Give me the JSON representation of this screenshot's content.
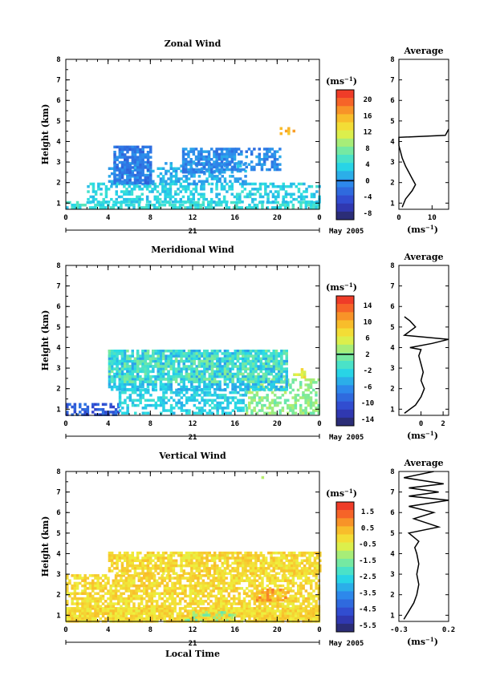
{
  "chart_data": [
    {
      "type": "heatmap",
      "title": "Zonal Wind",
      "xlabel": "",
      "ylabel": "Height (km)",
      "x_ticks": [
        "0",
        "4",
        "8",
        "12",
        "16",
        "20",
        "0"
      ],
      "y_ticks": [
        "1",
        "2",
        "3",
        "4",
        "5",
        "6",
        "7",
        "8"
      ],
      "xlim_hours": [
        0,
        24
      ],
      "ylim_km": [
        0.7,
        8
      ],
      "date_day": "21",
      "date_month": "May 2005",
      "colorbar": {
        "unit": "(ms⁻¹)",
        "ticks": [
          "20",
          "16",
          "12",
          "8",
          "4",
          "0",
          "-4",
          "-8"
        ],
        "range": [
          -10,
          22
        ]
      },
      "data_regions": [
        {
          "t0": 0,
          "t1": 24,
          "h0": 0.8,
          "h1": 1.1,
          "value": 4,
          "coverage": 0.55
        },
        {
          "t0": 2,
          "t1": 24,
          "h0": 1.1,
          "h1": 2.0,
          "value": 3,
          "coverage": 0.5
        },
        {
          "t0": 4,
          "t1": 17,
          "h0": 2.0,
          "h1": 3.0,
          "value": 1,
          "coverage": 0.45
        },
        {
          "t0": 4.5,
          "t1": 8,
          "h0": 2.0,
          "h1": 3.8,
          "value": -2,
          "coverage": 0.8
        },
        {
          "t0": 11,
          "t1": 16,
          "h0": 2.5,
          "h1": 3.7,
          "value": -1,
          "coverage": 0.8
        },
        {
          "t0": 16,
          "t1": 20.5,
          "h0": 2.6,
          "h1": 3.7,
          "value": -1,
          "coverage": 0.5
        },
        {
          "t0": 20,
          "t1": 21.5,
          "h0": 4.4,
          "h1": 4.7,
          "value": 16,
          "coverage": 0.4
        }
      ],
      "average": {
        "title": "Average",
        "xlabel": "(ms⁻¹)",
        "x_ticks": [
          "0",
          "10"
        ],
        "xlim": [
          0,
          15
        ],
        "y_ticks": [
          "1",
          "2",
          "3",
          "4",
          "5",
          "6",
          "7",
          "8"
        ],
        "x": [
          1,
          2,
          4,
          5,
          4,
          3,
          2,
          1,
          0.5,
          0,
          0,
          14,
          15
        ],
        "y": [
          0.8,
          1.2,
          1.6,
          1.9,
          2.2,
          2.5,
          2.8,
          3.2,
          3.5,
          3.8,
          4.2,
          4.3,
          4.6
        ]
      }
    },
    {
      "type": "heatmap",
      "title": "Meridional Wind",
      "xlabel": "",
      "ylabel": "Height (km)",
      "x_ticks": [
        "0",
        "4",
        "8",
        "12",
        "16",
        "20",
        "0"
      ],
      "y_ticks": [
        "1",
        "2",
        "3",
        "4",
        "5",
        "6",
        "7",
        "8"
      ],
      "xlim_hours": [
        0,
        24
      ],
      "ylim_km": [
        0.7,
        8
      ],
      "date_day": "21",
      "date_month": "May 2005",
      "colorbar": {
        "unit": "(ms⁻¹)",
        "ticks": [
          "14",
          "10",
          "6",
          "2",
          "-2",
          "-6",
          "-10",
          "-14"
        ],
        "range": [
          -16,
          16
        ]
      },
      "data_regions": [
        {
          "t0": 0,
          "t1": 5,
          "h0": 0.8,
          "h1": 1.3,
          "value": -10,
          "coverage": 0.55
        },
        {
          "t0": 5,
          "t1": 17,
          "h0": 0.8,
          "h1": 2.0,
          "value": -3,
          "coverage": 0.55
        },
        {
          "t0": 17,
          "t1": 24,
          "h0": 0.8,
          "h1": 2.5,
          "value": 2,
          "coverage": 0.5
        },
        {
          "t0": 4,
          "t1": 21,
          "h0": 2.0,
          "h1": 3.9,
          "value": -4,
          "coverage": 0.7
        },
        {
          "t0": 4,
          "t1": 21,
          "h0": 2.4,
          "h1": 3.9,
          "value": 0,
          "coverage": 0.5
        },
        {
          "t0": 21.5,
          "t1": 22.5,
          "h0": 2.6,
          "h1": 3.0,
          "value": 6,
          "coverage": 0.6
        }
      ],
      "average": {
        "title": "Average",
        "xlabel": "(ms⁻¹)",
        "x_ticks": [
          "0",
          "2"
        ],
        "xlim": [
          -2,
          2.5
        ],
        "y_ticks": [
          "1",
          "2",
          "3",
          "4",
          "5",
          "6",
          "7",
          "8"
        ],
        "x": [
          -1.5,
          -0.5,
          0,
          0.3,
          0,
          0.2,
          0,
          -0.2,
          0,
          -1,
          1,
          2.5,
          -1.5,
          -0.5,
          -1,
          -1.5
        ],
        "y": [
          0.8,
          1.2,
          1.6,
          2.0,
          2.4,
          2.8,
          3.2,
          3.6,
          3.9,
          4.0,
          4.2,
          4.4,
          4.6,
          5.0,
          5.3,
          5.5
        ]
      }
    },
    {
      "type": "heatmap",
      "title": "Vertical Wind",
      "xlabel": "Local Time",
      "ylabel": "Height (km)",
      "x_ticks": [
        "0",
        "4",
        "8",
        "12",
        "16",
        "20",
        "0"
      ],
      "y_ticks": [
        "1",
        "2",
        "3",
        "4",
        "5",
        "6",
        "7",
        "8"
      ],
      "xlim_hours": [
        0,
        24
      ],
      "ylim_km": [
        0.7,
        8
      ],
      "date_day": "21",
      "date_month": "May 2005",
      "colorbar": {
        "unit": "(ms⁻¹)",
        "ticks": [
          "1.5",
          "0.5",
          "-0.5",
          "-1.5",
          "-2.5",
          "-3.5",
          "-4.5",
          "-5.5"
        ],
        "range": [
          -6,
          2
        ]
      },
      "data_regions": [
        {
          "t0": 0,
          "t1": 24,
          "h0": 0.7,
          "h1": 1.4,
          "value": -0.2,
          "coverage": 0.92
        },
        {
          "t0": 0,
          "t1": 24,
          "h0": 1.4,
          "h1": 3.0,
          "value": -0.2,
          "coverage": 0.7
        },
        {
          "t0": 4,
          "t1": 24,
          "h0": 3.0,
          "h1": 4.1,
          "value": -0.2,
          "coverage": 0.8
        },
        {
          "t0": 18,
          "t1": 21,
          "h0": 1.8,
          "h1": 2.3,
          "value": 0.6,
          "coverage": 0.5
        },
        {
          "t0": 11,
          "t1": 16,
          "h0": 0.8,
          "h1": 1.2,
          "value": -1.5,
          "coverage": 0.3
        },
        {
          "t0": 18.5,
          "t1": 18.7,
          "h0": 7.5,
          "h1": 7.9,
          "value": -1.0,
          "coverage": 0.7
        }
      ],
      "average": {
        "title": "Average",
        "xlabel": "(ms⁻¹)",
        "x_ticks": [
          "-0.3",
          "0.2"
        ],
        "xlim": [
          -0.3,
          0.2
        ],
        "y_ticks": [
          "1",
          "2",
          "3",
          "4",
          "5",
          "6",
          "7",
          "8"
        ],
        "x": [
          -0.25,
          -0.2,
          -0.15,
          -0.12,
          -0.1,
          -0.12,
          -0.1,
          -0.12,
          -0.14,
          -0.1,
          -0.2,
          0.1,
          -0.15,
          0.05,
          -0.2,
          0.2,
          -0.2,
          0.1,
          -0.2,
          0.15,
          -0.25,
          0.05
        ],
        "y": [
          0.8,
          1.2,
          1.6,
          2.0,
          2.5,
          3.0,
          3.5,
          4.0,
          4.3,
          4.6,
          5.0,
          5.3,
          5.7,
          6.0,
          6.3,
          6.6,
          6.8,
          7.0,
          7.2,
          7.4,
          7.7,
          8.0
        ]
      }
    }
  ]
}
